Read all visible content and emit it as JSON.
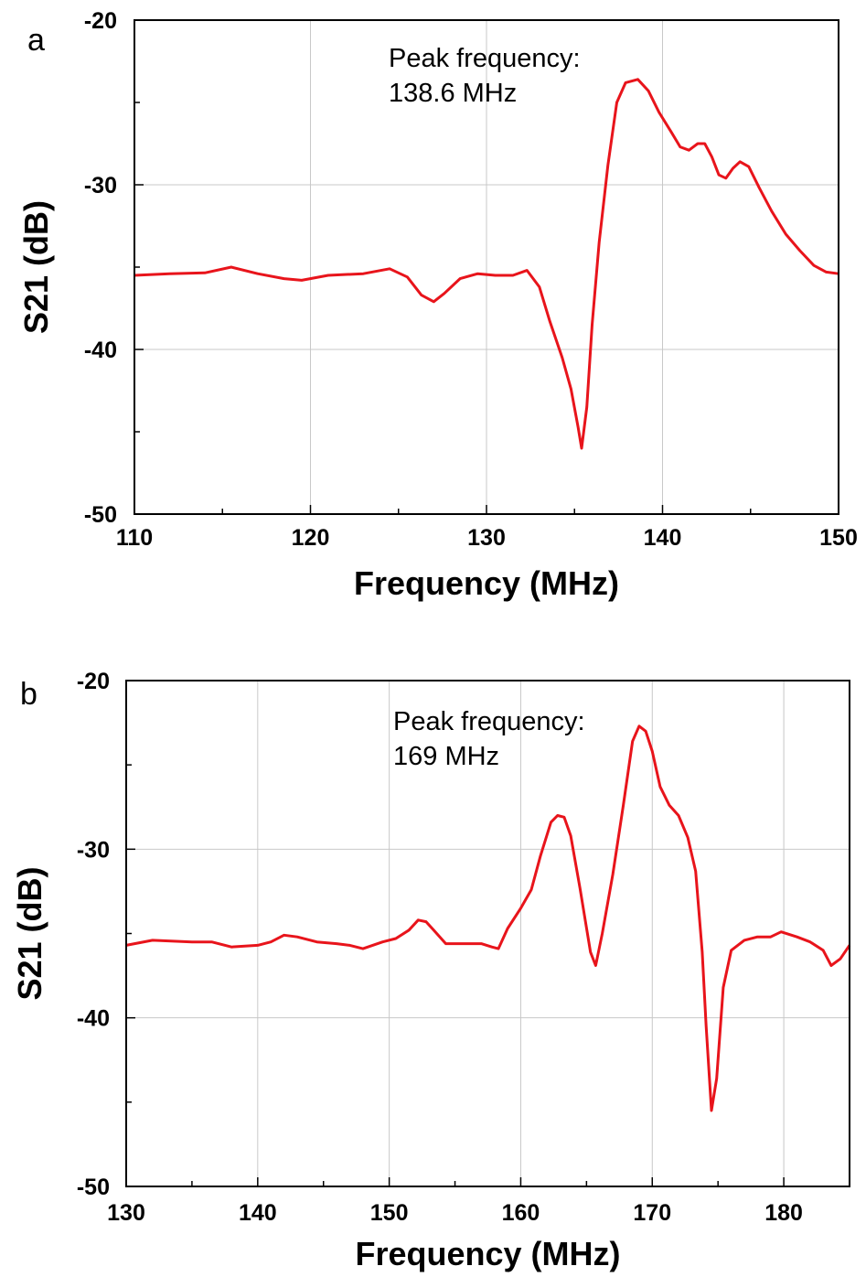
{
  "chart_data": [
    {
      "panel_label": "a",
      "type": "line",
      "xlabel": "Frequency (MHz)",
      "ylabel": "S21 (dB)",
      "xlim": [
        110,
        150
      ],
      "ylim": [
        -50,
        -20
      ],
      "xticks": [
        110,
        120,
        130,
        140,
        150
      ],
      "yticks": [
        -20,
        -30,
        -40,
        -50
      ],
      "grid": true,
      "annotation": [
        "Peak frequency:",
        "138.6 MHz"
      ],
      "color": "#e8141b",
      "series": [
        {
          "x": [
            110,
            112,
            114,
            115.5,
            117,
            118.5,
            119.5,
            121,
            123,
            124.5,
            125.5,
            126.3,
            127,
            127.6,
            128.5,
            129.5,
            130.5,
            131.5,
            132.3,
            133,
            133.6,
            134.3,
            134.8,
            135.2,
            135.4,
            135.7,
            136.0,
            136.4,
            136.9,
            137.4,
            137.9,
            138.6,
            139.2,
            139.8,
            140.5,
            141.0,
            141.5,
            142.0,
            142.4,
            142.8,
            143.2,
            143.6,
            144.0,
            144.4,
            144.9,
            145.5,
            146.2,
            147.0,
            147.8,
            148.6,
            149.3,
            150
          ],
          "y": [
            -35.5,
            -35.4,
            -35.35,
            -35.0,
            -35.4,
            -35.7,
            -35.8,
            -35.5,
            -35.4,
            -35.1,
            -35.6,
            -36.7,
            -37.1,
            -36.6,
            -35.7,
            -35.4,
            -35.5,
            -35.5,
            -35.2,
            -36.2,
            -38.3,
            -40.5,
            -42.4,
            -44.7,
            -46.0,
            -43.5,
            -38.5,
            -33.5,
            -28.8,
            -25.0,
            -23.8,
            -23.6,
            -24.3,
            -25.6,
            -26.8,
            -27.7,
            -27.9,
            -27.5,
            -27.5,
            -28.3,
            -29.4,
            -29.6,
            -29.0,
            -28.6,
            -28.9,
            -30.2,
            -31.6,
            -33.0,
            -34.0,
            -34.9,
            -35.3,
            -35.4
          ]
        }
      ]
    },
    {
      "panel_label": "b",
      "type": "line",
      "xlabel": "Frequency (MHz)",
      "ylabel": "S21 (dB)",
      "xlim": [
        130,
        185
      ],
      "ylim": [
        -50,
        -20
      ],
      "xticks": [
        130,
        140,
        150,
        160,
        170,
        180
      ],
      "yticks": [
        -20,
        -30,
        -40,
        -50
      ],
      "grid": true,
      "annotation": [
        "Peak frequency:",
        "169 MHz"
      ],
      "color": "#e8141b",
      "series": [
        {
          "x": [
            130,
            132,
            135,
            136.5,
            138,
            140,
            141,
            142,
            143,
            144.5,
            146,
            147,
            148,
            149.5,
            150.5,
            151.5,
            152.2,
            152.8,
            153.5,
            154.3,
            155.5,
            157,
            157.8,
            158.3,
            159,
            160,
            160.8,
            161.5,
            162.3,
            162.8,
            163.3,
            163.8,
            164.5,
            165.3,
            165.7,
            166.2,
            167.0,
            167.8,
            168.5,
            169.0,
            169.5,
            170.0,
            170.6,
            171.3,
            172.0,
            172.7,
            173.3,
            173.8,
            174.1,
            174.5,
            174.9,
            175.4,
            176.0,
            177.0,
            178.0,
            179.0,
            179.8,
            181.0,
            182.0,
            183.0,
            183.6,
            184.3,
            185
          ],
          "y": [
            -35.7,
            -35.4,
            -35.5,
            -35.5,
            -35.8,
            -35.7,
            -35.5,
            -35.1,
            -35.2,
            -35.5,
            -35.6,
            -35.7,
            -35.9,
            -35.5,
            -35.3,
            -34.8,
            -34.2,
            -34.3,
            -34.9,
            -35.6,
            -35.6,
            -35.6,
            -35.8,
            -35.9,
            -34.7,
            -33.5,
            -32.4,
            -30.4,
            -28.4,
            -28.0,
            -28.1,
            -29.2,
            -32.3,
            -36.1,
            -36.9,
            -35.0,
            -31.5,
            -27.4,
            -23.6,
            -22.7,
            -23.0,
            -24.2,
            -26.3,
            -27.4,
            -28.0,
            -29.3,
            -31.3,
            -36.1,
            -40.5,
            -45.5,
            -43.6,
            -38.2,
            -36.0,
            -35.4,
            -35.2,
            -35.2,
            -34.9,
            -35.2,
            -35.5,
            -36.0,
            -36.9,
            -36.5,
            -35.7
          ]
        }
      ]
    }
  ]
}
